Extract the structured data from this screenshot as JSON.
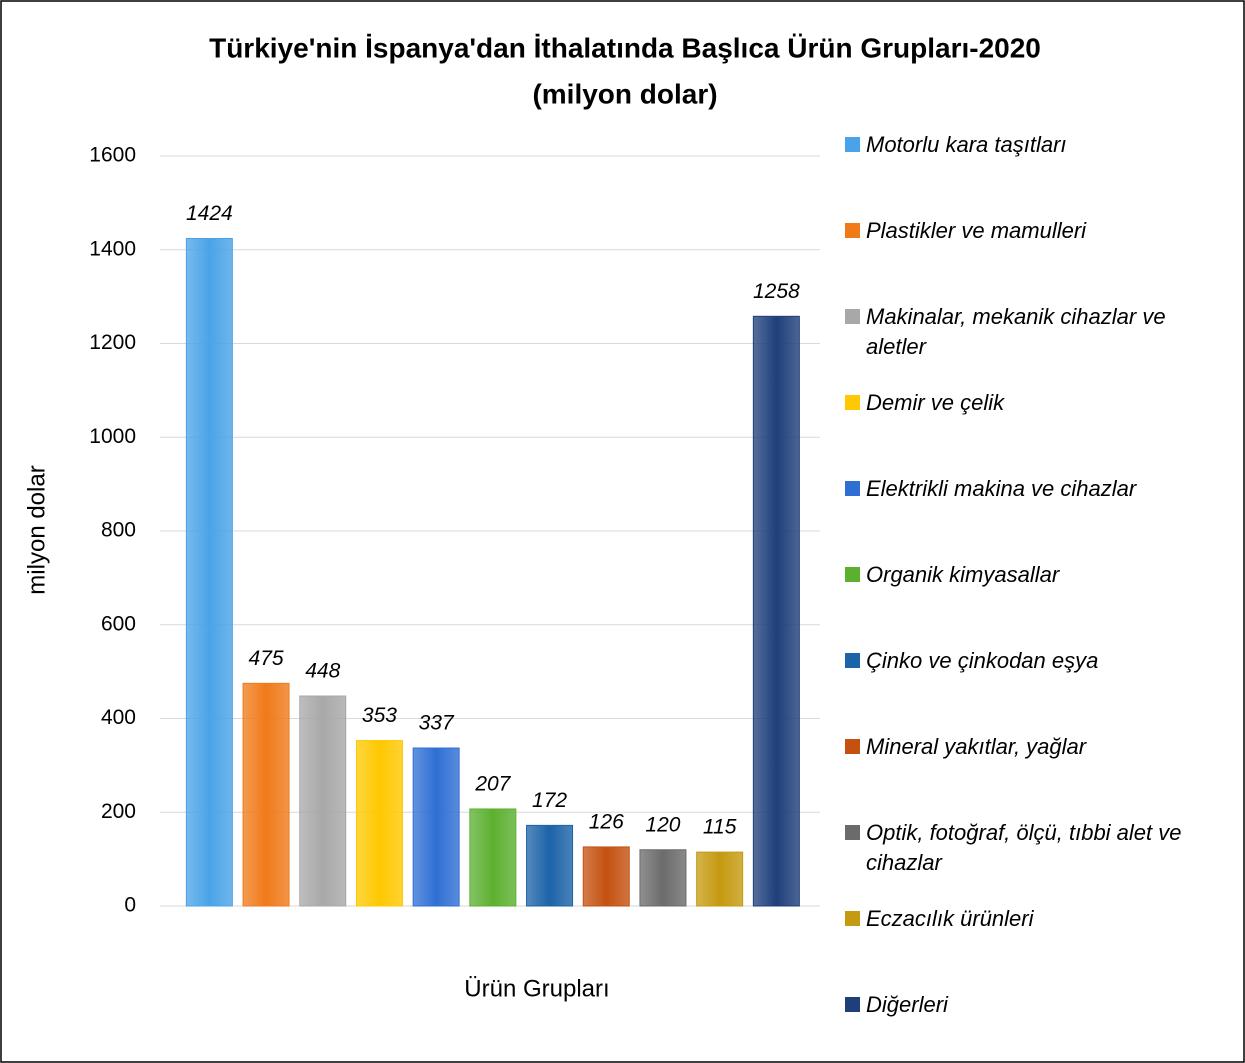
{
  "chart_data": {
    "type": "bar",
    "title": "Türkiye'nin İspanya'dan İthalatında Başlıca Ürün Grupları-2020",
    "subtitle": "(milyon dolar)",
    "y_label": "milyon dolar",
    "x_label": "Ürün Grupları",
    "categories": [
      "Motorlu kara taşıtları",
      "Plastikler ve mamulleri",
      "Makinalar, mekanik cihazlar ve aletler",
      "Demir ve çelik",
      "Elektrikli makina ve cihazlar",
      "Organik kimyasallar",
      "Çinko ve çinkodan eşya",
      "Mineral yakıtlar, yağlar",
      "Optik, fotoğraf, ölçü, tıbbi alet ve cihazlar",
      "Eczacılık ürünleri",
      "Diğerleri"
    ],
    "values": [
      1424,
      475,
      448,
      353,
      337,
      207,
      172,
      126,
      120,
      115,
      1258
    ],
    "colors": [
      "#4aa3e8",
      "#f07a1a",
      "#a8a8a8",
      "#ffc800",
      "#2f6fd4",
      "#5cb030",
      "#1c63a8",
      "#c45110",
      "#6b6b6b",
      "#c59a10",
      "#1f3f7a"
    ],
    "ylim": [
      0,
      1600
    ],
    "yticks": [
      0,
      200,
      400,
      600,
      800,
      1000,
      1200,
      1400,
      1600
    ],
    "grid": true,
    "legend": "right"
  }
}
